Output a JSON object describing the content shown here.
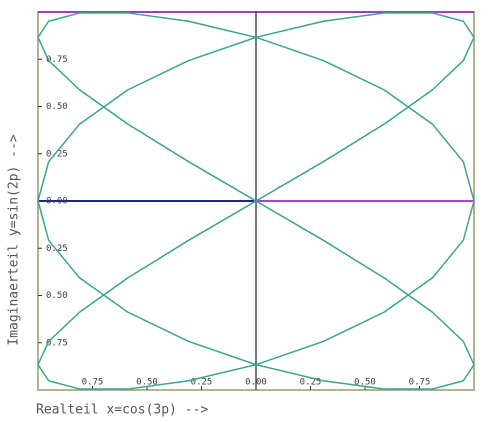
{
  "chart_data": {
    "type": "line",
    "x_label": "Realteil x=cos(3p)  -->",
    "y_label": "Imaginaerteil y=sin(2p)  -->",
    "x": [
      1,
      0.951,
      0.809,
      0.588,
      0.309,
      0,
      -0.309,
      -0.588,
      -0.809,
      -0.951,
      -1,
      -0.951,
      -0.809,
      -0.588,
      -0.309,
      0,
      0.309,
      0.588,
      0.809,
      0.951,
      1,
      0.951,
      0.809,
      0.588,
      0.309,
      0,
      -0.309,
      -0.588,
      -0.809,
      -0.951,
      -1,
      -0.951,
      -0.809,
      -0.588,
      -0.309,
      0,
      0.309,
      0.588,
      0.809,
      0.951,
      1,
      0.951,
      0.809,
      0.588,
      0.309,
      0,
      -0.309,
      -0.588,
      -0.809,
      -0.951,
      -1,
      -0.951,
      -0.809,
      -0.588,
      -0.309,
      0,
      0.309,
      0.588,
      0.809,
      0.951,
      1
    ],
    "series": [
      {
        "color": "#3aa58c",
        "values": [
          0,
          0.208,
          0.407,
          0.588,
          0.743,
          0.866,
          0.951,
          0.995,
          0.995,
          0.951,
          0.866,
          0.743,
          0.588,
          0.407,
          0.208,
          0,
          -0.208,
          -0.407,
          -0.588,
          -0.743,
          -0.866,
          -0.951,
          -0.995,
          -0.995,
          -0.951,
          -0.866,
          -0.743,
          -0.588,
          -0.407,
          -0.208,
          0,
          0.208,
          0.407,
          0.588,
          0.743,
          0.866,
          0.951,
          0.995,
          0.995,
          0.951,
          0.866,
          0.743,
          0.588,
          0.407,
          0.208,
          0,
          -0.208,
          -0.407,
          -0.588,
          -0.743,
          -0.866,
          -0.951,
          -0.995,
          -0.995,
          -0.951,
          -0.866,
          -0.743,
          -0.588,
          -0.407,
          -0.208,
          0
        ]
      }
    ],
    "xlim": [
      -1,
      1
    ],
    "ylim": [
      -1,
      1
    ],
    "xticks": [
      {
        "value": -0.75,
        "label": "0.75"
      },
      {
        "value": -0.5,
        "label": "0.50"
      },
      {
        "value": -0.25,
        "label": "0.25"
      },
      {
        "value": 0,
        "label": "0.00"
      },
      {
        "value": 0.25,
        "label": "0.25"
      },
      {
        "value": 0.5,
        "label": "0.50"
      },
      {
        "value": 0.75,
        "label": "0.75"
      }
    ],
    "yticks": [
      {
        "value": 0.75,
        "label": "0.75"
      },
      {
        "value": 0.5,
        "label": "0.50"
      },
      {
        "value": 0.25,
        "label": "0.25"
      },
      {
        "value": 0,
        "label": "0.00"
      },
      {
        "value": -0.25,
        "label": "0.25"
      },
      {
        "value": -0.5,
        "label": "0.50"
      },
      {
        "value": -0.75,
        "label": "0.75"
      }
    ]
  }
}
